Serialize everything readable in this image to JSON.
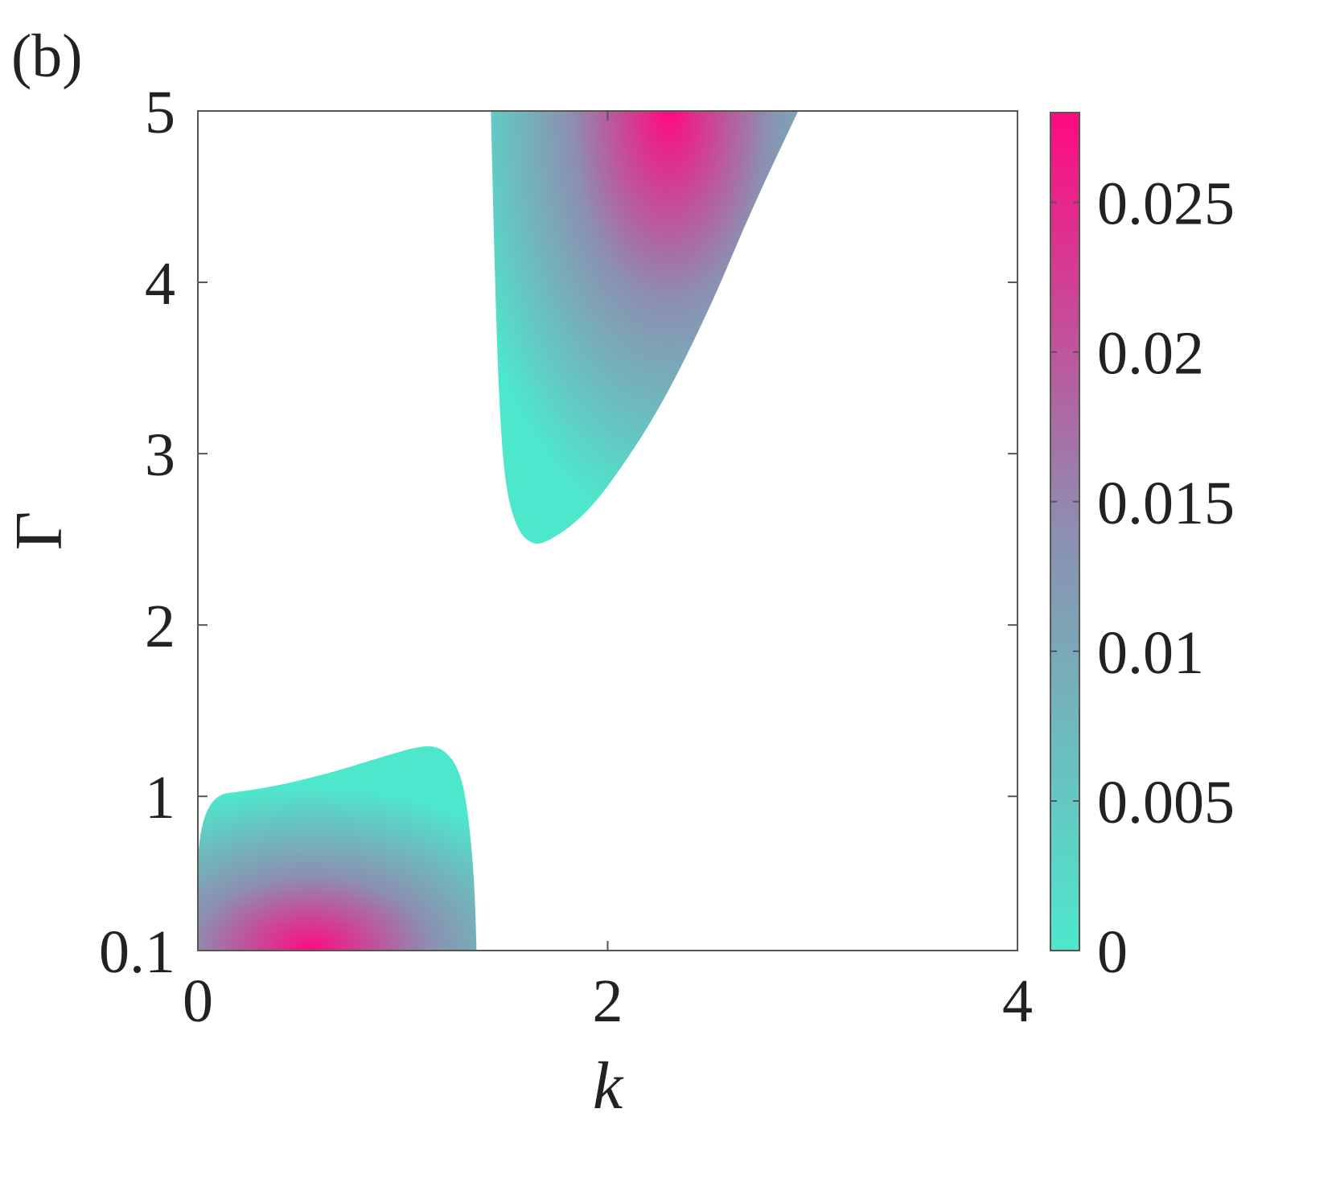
{
  "panel_label": "(b)",
  "chart_data": {
    "type": "heatmap",
    "title": "",
    "xlabel": "k",
    "ylabel": "Γ",
    "xlim": [
      0,
      4
    ],
    "ylim": [
      0.1,
      5
    ],
    "x_ticks": [
      0,
      2,
      4
    ],
    "x_tick_labels": [
      "0",
      "2",
      "4"
    ],
    "y_ticks": [
      0.1,
      1,
      2,
      3,
      4,
      5
    ],
    "y_tick_labels": [
      "0.1",
      "1",
      "2",
      "3",
      "4",
      "5"
    ],
    "colorbar": {
      "range": [
        0,
        0.028
      ],
      "ticks": [
        0,
        0.005,
        0.01,
        0.015,
        0.02,
        0.025
      ],
      "tick_labels": [
        "0",
        "0.005",
        "0.01",
        "0.015",
        "0.02",
        "0.025"
      ],
      "colormap_low": "#4de8cc",
      "colormap_mid": "#8c8fb0",
      "colormap_high": "#ff0a80"
    },
    "background_color": "#ffffff",
    "regions": [
      {
        "description_of_shape": "lower-left lobe",
        "boundary": [
          [
            0,
            0.1
          ],
          [
            0,
            1.0
          ],
          [
            0.3,
            1.04
          ],
          [
            0.6,
            1.12
          ],
          [
            0.9,
            1.23
          ],
          [
            1.1,
            1.3
          ],
          [
            1.2,
            1.28
          ],
          [
            1.28,
            1.15
          ],
          [
            1.32,
            0.9
          ],
          [
            1.35,
            0.5
          ],
          [
            1.36,
            0.1
          ]
        ],
        "peak": {
          "k": 0.55,
          "gamma": 0.1,
          "value": 0.028
        }
      },
      {
        "description_of_shape": "upper-right lobe",
        "boundary": [
          [
            1.43,
            5.0
          ],
          [
            1.45,
            4.0
          ],
          [
            1.47,
            3.3
          ],
          [
            1.5,
            2.8
          ],
          [
            1.56,
            2.55
          ],
          [
            1.63,
            2.47
          ],
          [
            1.7,
            2.48
          ],
          [
            1.85,
            2.6
          ],
          [
            2.0,
            2.8
          ],
          [
            2.25,
            3.25
          ],
          [
            2.5,
            3.85
          ],
          [
            2.7,
            4.42
          ],
          [
            2.93,
            5.0
          ]
        ],
        "peak": {
          "k": 2.3,
          "gamma": 5.0,
          "value": 0.028
        }
      }
    ]
  }
}
